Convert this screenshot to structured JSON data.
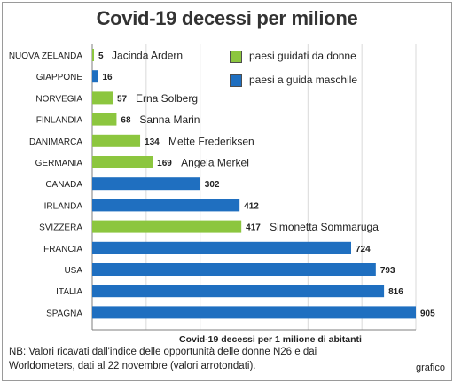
{
  "footnote": "NB: Valori ricavati dall'indice delle opportunità delle donne N26 e dai Worldometers, dati al 22 novembre (valori arrotondati).",
  "source": "grafico",
  "colors": {
    "woman_led": "#8cc63f",
    "man_led": "#1f6fc0",
    "grid": "#d9d9d9"
  },
  "chart_data": {
    "type": "bar",
    "orientation": "horizontal",
    "title": "Covid-19 decessi per milione",
    "xlabel": "Covid-19 decessi per 1 milione di abitanti",
    "ylabel": "",
    "xlim": [
      0,
      905
    ],
    "grid": true,
    "legend_position": "top-right",
    "legend": [
      {
        "key": "woman",
        "label": "paesi guidati da donne"
      },
      {
        "key": "man",
        "label": "paesi a guida maschile"
      }
    ],
    "bars": [
      {
        "country": "NUOVA ZELANDA",
        "value": 5,
        "group": "woman",
        "leader": "Jacinda Ardern"
      },
      {
        "country": "GIAPPONE",
        "value": 16,
        "group": "man",
        "leader": ""
      },
      {
        "country": "NORVEGIA",
        "value": 57,
        "group": "woman",
        "leader": "Erna Solberg"
      },
      {
        "country": "FINLANDIA",
        "value": 68,
        "group": "woman",
        "leader": "Sanna Marin"
      },
      {
        "country": "DANIMARCA",
        "value": 134,
        "group": "woman",
        "leader": "Mette Frederiksen"
      },
      {
        "country": "GERMANIA",
        "value": 169,
        "group": "woman",
        "leader": "Angela Merkel"
      },
      {
        "country": "CANADA",
        "value": 302,
        "group": "man",
        "leader": ""
      },
      {
        "country": "IRLANDA",
        "value": 412,
        "group": "man",
        "leader": ""
      },
      {
        "country": "SVIZZERA",
        "value": 417,
        "group": "woman",
        "leader": "Simonetta Sommaruga"
      },
      {
        "country": "FRANCIA",
        "value": 724,
        "group": "man",
        "leader": ""
      },
      {
        "country": "USA",
        "value": 793,
        "group": "man",
        "leader": ""
      },
      {
        "country": "ITALIA",
        "value": 816,
        "group": "man",
        "leader": ""
      },
      {
        "country": "SPAGNA",
        "value": 905,
        "group": "man",
        "leader": ""
      }
    ]
  }
}
